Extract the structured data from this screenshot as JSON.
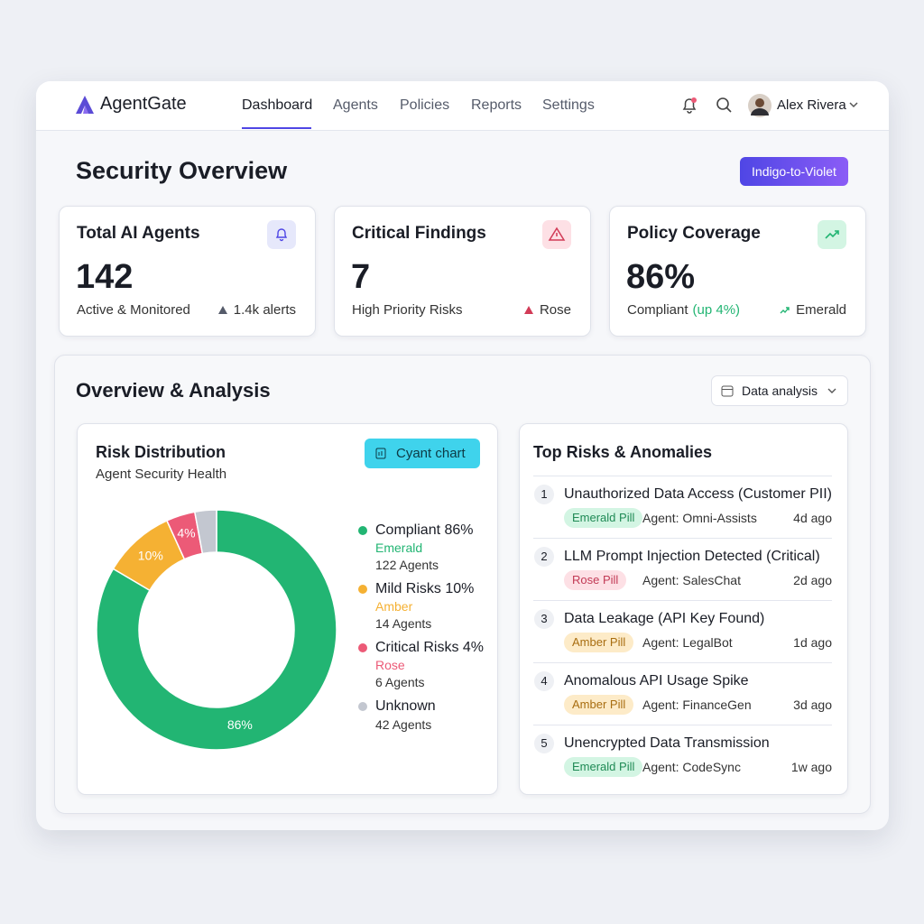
{
  "nav": {
    "brand": "AgentGate",
    "links": [
      "Dashboard",
      "Agents",
      "Policies",
      "Reports",
      "Settings"
    ],
    "user": "Alex Rivera"
  },
  "header": {
    "title": "Security Overview",
    "badge": "Indigo-to-Violet"
  },
  "stats": [
    {
      "title": "Total AI Agents",
      "value": "142",
      "caption": "Active & Monitored",
      "note": "1.4k alerts"
    },
    {
      "title": "Critical Findings",
      "value": "7",
      "caption": "High Priority Risks",
      "note": "Rose"
    },
    {
      "title": "Policy Coverage",
      "value": "86%",
      "caption": "Compliant",
      "caption_extra": "(up 4%)",
      "note": "Emerald"
    }
  ],
  "analysis": {
    "title": "Overview & Analysis",
    "filter": "Data analysis"
  },
  "risk_panel": {
    "title": "Risk Distribution",
    "subtitle": "Agent Security Health",
    "button": "Cyant chart"
  },
  "chart_data": {
    "type": "pie",
    "donut": true,
    "categories": [
      "Compliant 86%",
      "Mild Risks 10%",
      "Critical Risks 4%",
      "Unknown"
    ],
    "values": [
      86,
      10,
      4,
      3
    ],
    "value_labels": [
      "86%",
      "10%",
      "4%",
      null
    ],
    "color_names": [
      "Emerald",
      "Amber",
      "Rose",
      null
    ],
    "counts": [
      "122 Agents",
      "14 Agents",
      "6 Agents",
      "42 Agents"
    ],
    "colors": [
      "#22b573",
      "#f5b133",
      "#ec5a77",
      "#c3c7d0"
    ]
  },
  "risks": {
    "title": "Top Risks & Anomalies",
    "items": [
      {
        "rank": 1,
        "title": "Unauthorized Data Access (Customer PII)",
        "pill": "Emerald Pill",
        "pill_bg": "#d3f5e3",
        "pill_fg": "#1f8a55",
        "agent": "Agent: Omni-Assists",
        "time": "4d ago"
      },
      {
        "rank": 2,
        "title": "LLM Prompt Injection Detected (Critical)",
        "pill": "Rose Pill",
        "pill_bg": "#fde0e5",
        "pill_fg": "#c23a55",
        "agent": "Agent: SalesChat",
        "time": "2d ago"
      },
      {
        "rank": 3,
        "title": "Data Leakage (API Key Found)",
        "pill": "Amber Pill",
        "pill_bg": "#fdebc8",
        "pill_fg": "#a86d10",
        "agent": "Agent: LegalBot",
        "time": "1d ago"
      },
      {
        "rank": 4,
        "title": "Anomalous API Usage Spike",
        "pill": "Amber Pill",
        "pill_bg": "#fdebc8",
        "pill_fg": "#a86d10",
        "agent": "Agent: FinanceGen",
        "time": "3d ago"
      },
      {
        "rank": 5,
        "title": "Unencrypted Data Transmission",
        "pill": "Emerald Pill",
        "pill_bg": "#d3f5e3",
        "pill_fg": "#1f8a55",
        "agent": "Agent: CodeSync",
        "time": "1w ago"
      }
    ]
  }
}
